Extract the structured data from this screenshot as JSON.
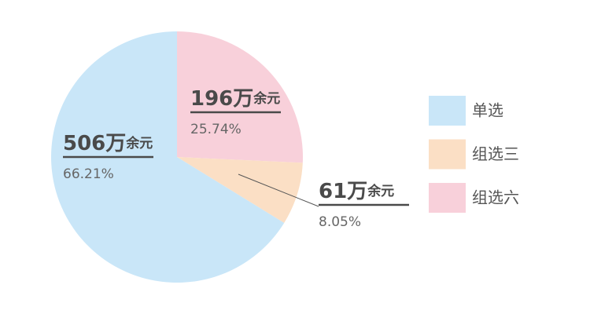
{
  "chart_data": {
    "type": "pie",
    "categories": [
      "单选",
      "组选三",
      "组选六"
    ],
    "values": [
      66.21,
      8.05,
      25.74
    ],
    "value_labels": [
      "66.21%",
      "8.05%",
      "25.74%"
    ],
    "amount_labels": [
      {
        "amount": "506万",
        "unit": "余元"
      },
      {
        "amount": "61万",
        "unit": "余元"
      },
      {
        "amount": "196万",
        "unit": "余元"
      }
    ],
    "colors": [
      "#c9e6f8",
      "#fbdfc5",
      "#f8d0da"
    ]
  }
}
